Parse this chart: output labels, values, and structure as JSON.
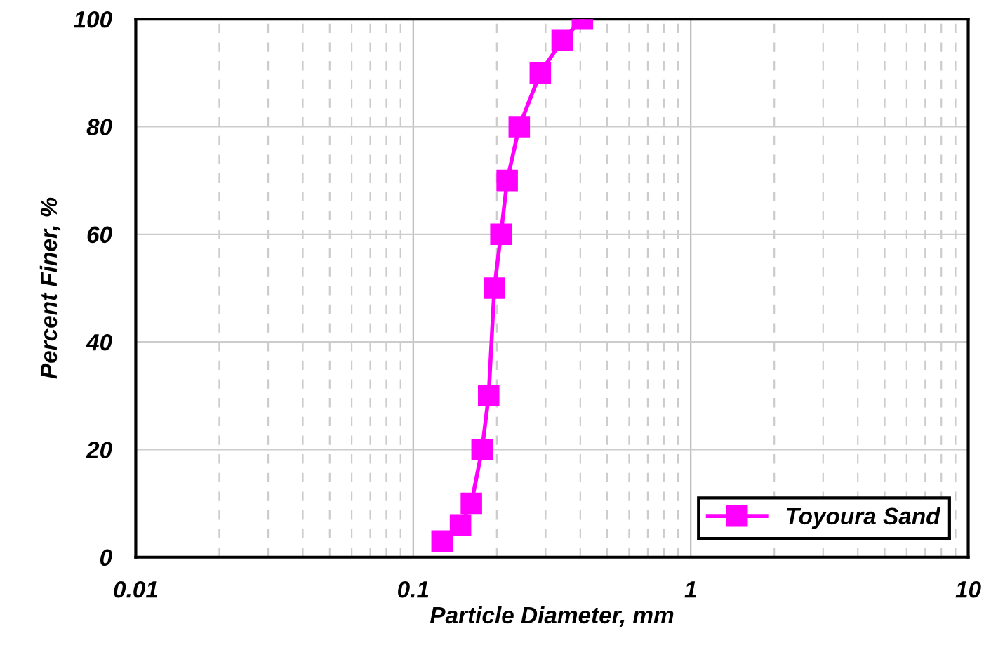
{
  "chart_data": {
    "type": "line",
    "xlabel": "Particle Diameter, mm",
    "ylabel": "Percent Finer, %",
    "x": [
      0.127,
      0.148,
      0.162,
      0.177,
      0.187,
      0.196,
      0.207,
      0.218,
      0.241,
      0.287,
      0.344,
      0.407
    ],
    "series": [
      {
        "name": "Toyoura Sand",
        "color": "#ff00ff",
        "values": [
          3,
          6,
          10,
          20,
          30,
          50,
          60,
          70,
          80,
          90,
          96,
          100
        ]
      }
    ],
    "log": "x",
    "xlim": [
      0.01,
      10
    ],
    "xticks": [
      0.01,
      0.1,
      1,
      10
    ],
    "ylim": [
      0,
      100
    ],
    "yticks": [
      0,
      20,
      40,
      60,
      80,
      100
    ],
    "grid": true,
    "legend": "bottom right",
    "marker": "square",
    "line_style": "solid"
  }
}
